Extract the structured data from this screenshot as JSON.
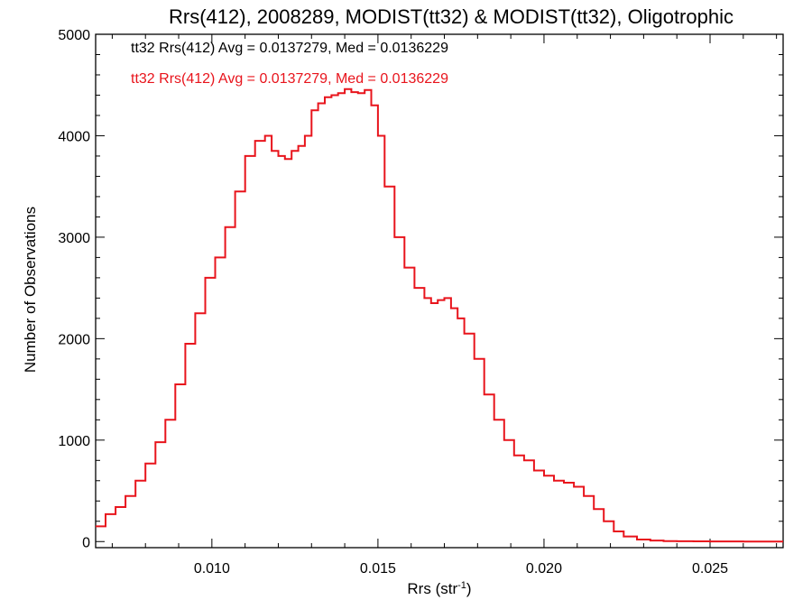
{
  "chart_data": {
    "type": "line",
    "title": "Rrs(412), 2008289, MODIST(tt32) & MODIST(tt32), Oligotrophic",
    "xlabel_main": "Rrs (str",
    "xlabel_sup": "-1",
    "xlabel_close": ")",
    "ylabel": "Number of Observations",
    "xlim": [
      0.0065,
      0.0272
    ],
    "ylim": [
      -60,
      5000
    ],
    "x_ticks": [
      0.01,
      0.015,
      0.02,
      0.025
    ],
    "x_tick_labels": [
      "0.010",
      "0.015",
      "0.020",
      "0.025"
    ],
    "y_ticks": [
      0,
      1000,
      2000,
      3000,
      4000,
      5000
    ],
    "y_tick_labels": [
      "0",
      "1000",
      "2000",
      "3000",
      "4000",
      "5000"
    ],
    "grid": false,
    "annotations": [
      {
        "text": "tt32 Rrs(412) Avg = 0.0137279, Med = 0.0136229",
        "color": "#000000"
      },
      {
        "text": "tt32 Rrs(412) Avg = 0.0137279, Med = 0.0136229",
        "color": "#e8141c"
      }
    ],
    "series": [
      {
        "color": "#e8141c",
        "x": [
          0.0065,
          0.0068,
          0.0071,
          0.0074,
          0.0077,
          0.008,
          0.0083,
          0.0086,
          0.0089,
          0.0092,
          0.0095,
          0.0098,
          0.0101,
          0.0104,
          0.0107,
          0.011,
          0.0113,
          0.0116,
          0.0118,
          0.012,
          0.0122,
          0.0124,
          0.0126,
          0.0128,
          0.013,
          0.0132,
          0.0134,
          0.0136,
          0.0138,
          0.014,
          0.0142,
          0.0144,
          0.0146,
          0.0148,
          0.015,
          0.0152,
          0.0155,
          0.0158,
          0.0161,
          0.0164,
          0.0166,
          0.0168,
          0.017,
          0.0172,
          0.0174,
          0.0176,
          0.0179,
          0.0182,
          0.0185,
          0.0188,
          0.0191,
          0.0194,
          0.0197,
          0.02,
          0.0203,
          0.0206,
          0.0209,
          0.0212,
          0.0215,
          0.0218,
          0.0221,
          0.0224,
          0.0228,
          0.0232,
          0.0236,
          0.024,
          0.0245,
          0.025,
          0.026,
          0.0272
        ],
        "y": [
          150,
          270,
          340,
          450,
          600,
          770,
          980,
          1200,
          1550,
          1950,
          2250,
          2600,
          2800,
          3100,
          3450,
          3800,
          3950,
          4000,
          3850,
          3800,
          3770,
          3850,
          3900,
          4000,
          4250,
          4320,
          4380,
          4400,
          4420,
          4460,
          4430,
          4420,
          4450,
          4300,
          4000,
          3500,
          3000,
          2700,
          2500,
          2400,
          2350,
          2380,
          2400,
          2300,
          2200,
          2050,
          1800,
          1450,
          1200,
          1000,
          850,
          800,
          700,
          650,
          600,
          580,
          540,
          450,
          320,
          200,
          100,
          50,
          20,
          10,
          5,
          3,
          2,
          1,
          0,
          0
        ]
      }
    ]
  }
}
